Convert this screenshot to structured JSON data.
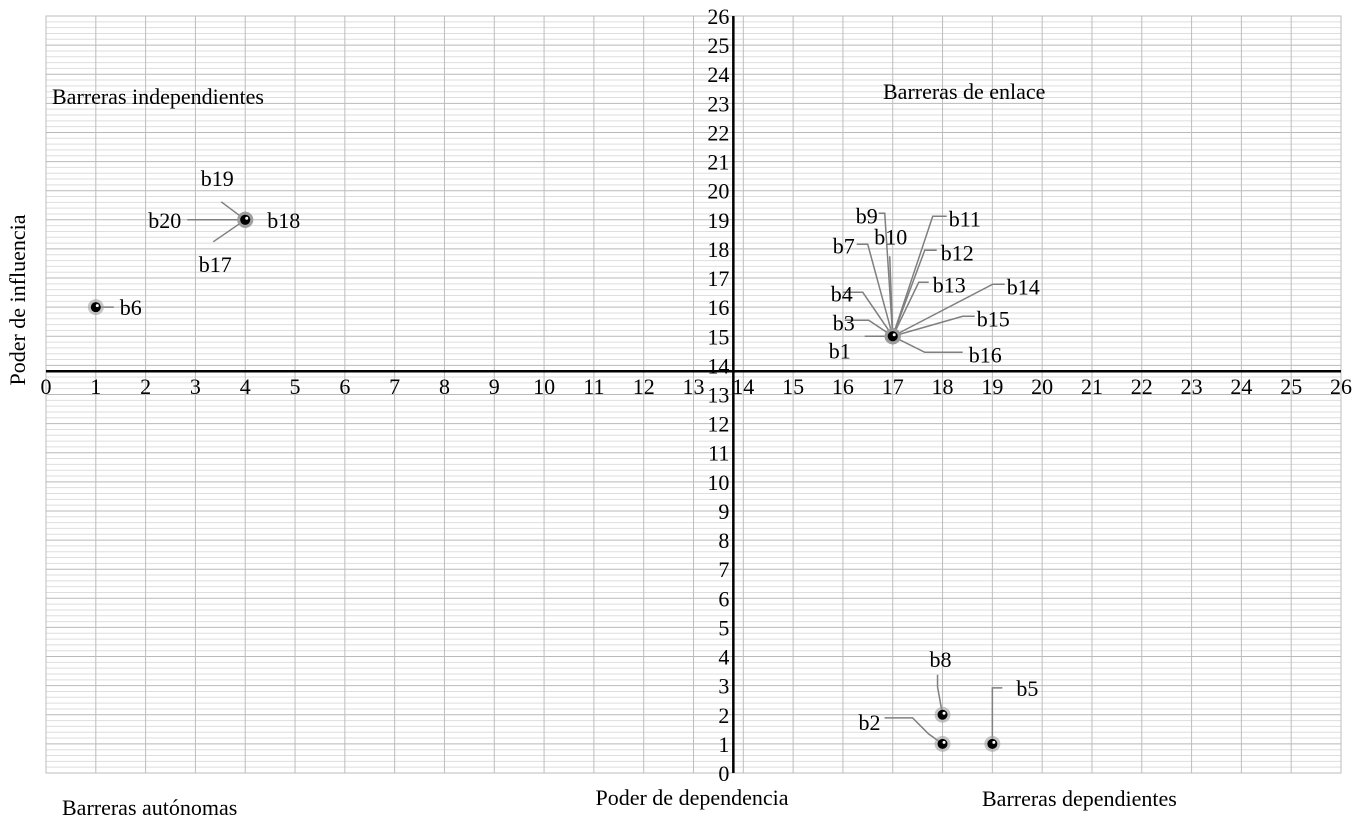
{
  "chart_data": {
    "type": "scatter",
    "title": "",
    "xlabel": "Poder de dependencia",
    "ylabel": "Poder de influencia",
    "xlim": [
      0,
      26
    ],
    "ylim": [
      0,
      26
    ],
    "x_ticks": [
      "0",
      "1",
      "2",
      "3",
      "4",
      "5",
      "6",
      "7",
      "8",
      "9",
      "10",
      "11",
      "12",
      "13",
      "14",
      "15",
      "16",
      "17",
      "18",
      "19",
      "20",
      "21",
      "22",
      "23",
      "24",
      "25",
      "26"
    ],
    "y_ticks": [
      "0",
      "1",
      "2",
      "3",
      "4",
      "5",
      "6",
      "7",
      "8",
      "9",
      "10",
      "11",
      "12",
      "13",
      "14",
      "15",
      "16",
      "17",
      "18",
      "19",
      "20",
      "21",
      "22",
      "23",
      "24",
      "25",
      "26"
    ],
    "grid": true,
    "axis_cross": {
      "x": 13.8,
      "y": 13.8
    },
    "quadrants": {
      "top_left": "Barreras independientes",
      "top_right": "Barreras de enlace",
      "bottom_left": "Barreras autónomas",
      "bottom_right": "Barreras dependientes"
    },
    "points": [
      {
        "label": "b1",
        "x": 17,
        "y": 15
      },
      {
        "label": "b2",
        "x": 18,
        "y": 1
      },
      {
        "label": "b3",
        "x": 17,
        "y": 15
      },
      {
        "label": "b4",
        "x": 17,
        "y": 15
      },
      {
        "label": "b5",
        "x": 19,
        "y": 1
      },
      {
        "label": "b6",
        "x": 1,
        "y": 16
      },
      {
        "label": "b7",
        "x": 17,
        "y": 15
      },
      {
        "label": "b8",
        "x": 18,
        "y": 2
      },
      {
        "label": "b9",
        "x": 17,
        "y": 15
      },
      {
        "label": "b10",
        "x": 17,
        "y": 15
      },
      {
        "label": "b11",
        "x": 17,
        "y": 15
      },
      {
        "label": "b12",
        "x": 17,
        "y": 15
      },
      {
        "label": "b13",
        "x": 17,
        "y": 15
      },
      {
        "label": "b14",
        "x": 17,
        "y": 15
      },
      {
        "label": "b15",
        "x": 17,
        "y": 15
      },
      {
        "label": "b16",
        "x": 17,
        "y": 15
      },
      {
        "label": "b17",
        "x": 4,
        "y": 19
      },
      {
        "label": "b18",
        "x": 4,
        "y": 19
      },
      {
        "label": "b19",
        "x": 4,
        "y": 19
      },
      {
        "label": "b20",
        "x": 4,
        "y": 19
      }
    ]
  }
}
